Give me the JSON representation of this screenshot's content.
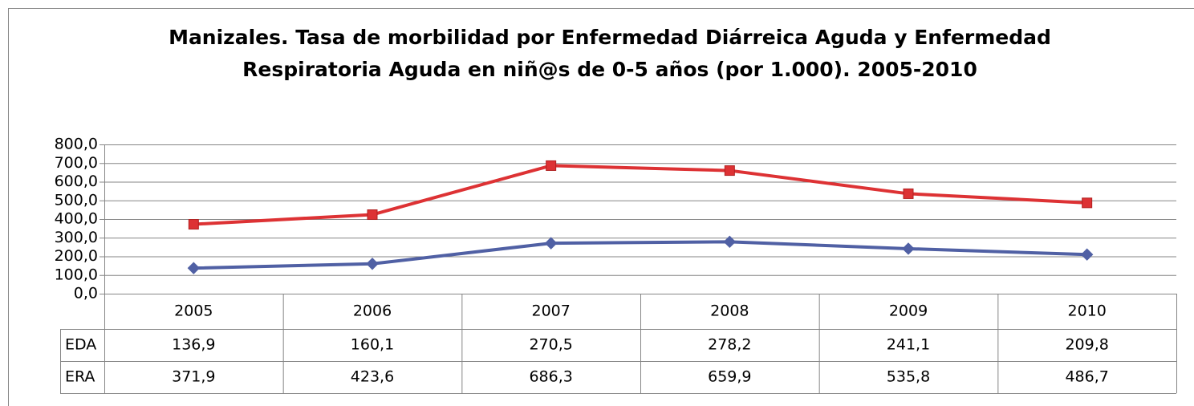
{
  "chart_data": {
    "type": "line",
    "title": [
      "Manizales. Tasa de morbilidad por Enfermedad Diárreica Aguda y Enfermedad",
      "Respiratoria Aguda en niñ@s de 0-5 años (por 1.000). 2005-2010"
    ],
    "categories": [
      "2005",
      "2006",
      "2007",
      "2008",
      "2009",
      "2010"
    ],
    "series": [
      {
        "name": "EDA",
        "color": "#5060a4",
        "marker": "diamond",
        "values": [
          136.9,
          160.1,
          270.5,
          278.2,
          241.1,
          209.8
        ],
        "value_labels": [
          "136,9",
          "160,1",
          "270,5",
          "278,2",
          "241,1",
          "209,8"
        ]
      },
      {
        "name": "ERA",
        "color": "#dd3234",
        "marker": "square",
        "values": [
          371.9,
          423.6,
          686.3,
          659.9,
          535.8,
          486.7
        ],
        "value_labels": [
          "371,9",
          "423,6",
          "686,3",
          "659,9",
          "535,8",
          "486,7"
        ]
      }
    ],
    "ylim": [
      0,
      800
    ],
    "yticks": [
      {
        "value": 0,
        "label": "0,0"
      },
      {
        "value": 100,
        "label": "100,0"
      },
      {
        "value": 200,
        "label": "200,0"
      },
      {
        "value": 300,
        "label": "300,0"
      },
      {
        "value": 400,
        "label": "400,0"
      },
      {
        "value": 500,
        "label": "500,0"
      },
      {
        "value": 600,
        "label": "600,0"
      },
      {
        "value": 700,
        "label": "700,0"
      },
      {
        "value": 800,
        "label": "800,0"
      }
    ],
    "grid": true
  }
}
